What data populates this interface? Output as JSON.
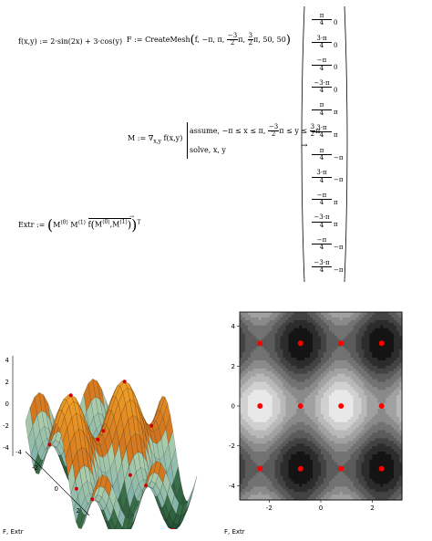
{
  "top": {
    "f_def": {
      "lhs": "f(x,y)",
      "op": ":=",
      "rhs": "2·sin(2x) + 3·cos(y)"
    },
    "F_def": {
      "lhs": "F",
      "op": ":=",
      "fn": "CreateMesh",
      "args_a": "f, −π, π, ",
      "frac_num": "−3",
      "frac_den": "2",
      "args_b": "π, ",
      "frac2_num": "3",
      "frac2_den": "2",
      "args_c": "π, 50, 50"
    },
    "M_def": {
      "lhs": "M",
      "op": ":=",
      "rhs": "∇",
      "sub": "x,y",
      "arg": "f(x,y)",
      "assume_a": "assume, −π ≤ x ≤ π, ",
      "assume_num": "−3",
      "assume_den": "2",
      "assume_b": "π ≤ y ≤ ",
      "assume2_num": "3",
      "assume2_den": "2",
      "assume_c": "π",
      "solve": "solve, x, y",
      "arrow": "→"
    },
    "Extr_def": {
      "lhs": "Extr",
      "op": ":=",
      "m0": "M",
      "m0_sup": "⟨0⟩",
      "m1": "M",
      "m1_sup": "⟨1⟩",
      "fcall": "f",
      "inner": "M",
      "inner_sup0": "⟨0⟩",
      "inner_sup1": "⟨1⟩",
      "transpose": "T"
    }
  },
  "matrix": [
    {
      "num": "π",
      "den": "4",
      "col2": "0"
    },
    {
      "num": "3·π",
      "den": "4",
      "col2": "0"
    },
    {
      "num": "−π",
      "den": "4",
      "col2": "0"
    },
    {
      "num": "−3·π",
      "den": "4",
      "col2": "0"
    },
    {
      "num": "π",
      "den": "4",
      "col2": "π"
    },
    {
      "num": "3·π",
      "den": "4",
      "col2": "π"
    },
    {
      "num": "π",
      "den": "4",
      "col2": "−π"
    },
    {
      "num": "3·π",
      "den": "4",
      "col2": "−π"
    },
    {
      "num": "−π",
      "den": "4",
      "col2": "π"
    },
    {
      "num": "−3·π",
      "den": "4",
      "col2": "π"
    },
    {
      "num": "−π",
      "den": "4",
      "col2": "−π"
    },
    {
      "num": "−3·π",
      "den": "4",
      "col2": "−π"
    }
  ],
  "plot3d": {
    "caption": "F, Extr",
    "zticks": [
      "4",
      "2",
      "0",
      "-2",
      "-4"
    ],
    "xticks": [
      "-4",
      "-2",
      "0",
      "2"
    ],
    "surface_color": "#c47a2c",
    "point_color": "#cc0000"
  },
  "contour": {
    "caption": "F, Extr",
    "yticks": [
      "4",
      "2",
      "0",
      "-2",
      "-4"
    ],
    "xticks": [
      "-2",
      "0",
      "2"
    ],
    "point_color": "#ff0000",
    "extrema": [
      [
        0.785,
        0
      ],
      [
        2.356,
        0
      ],
      [
        -0.785,
        0
      ],
      [
        -2.356,
        0
      ],
      [
        0.785,
        3.1416
      ],
      [
        2.356,
        3.1416
      ],
      [
        0.785,
        -3.1416
      ],
      [
        2.356,
        -3.1416
      ],
      [
        -0.785,
        3.1416
      ],
      [
        -2.356,
        3.1416
      ],
      [
        -0.785,
        -3.1416
      ],
      [
        -2.356,
        -3.1416
      ]
    ]
  }
}
